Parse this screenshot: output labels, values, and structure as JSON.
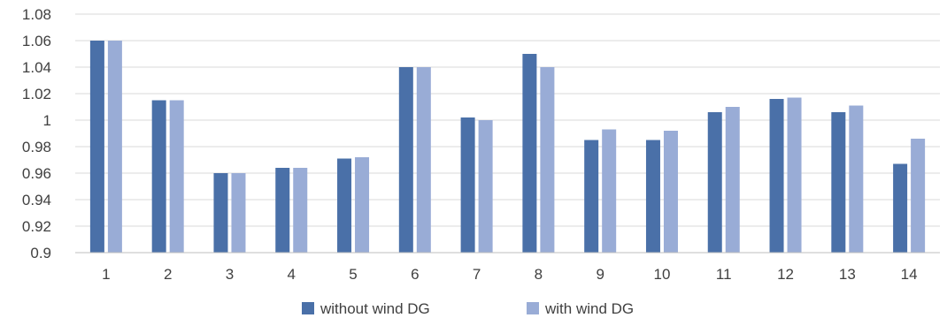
{
  "chart_data": {
    "type": "bar",
    "title": "",
    "xlabel": "",
    "ylabel": "",
    "ylim": [
      0.9,
      1.08
    ],
    "yticks": [
      0.9,
      0.92,
      0.94,
      0.96,
      0.98,
      1,
      1.02,
      1.04,
      1.06,
      1.08
    ],
    "ytick_labels": [
      "0.9",
      "0.92",
      "0.94",
      "0.96",
      "0.98",
      "1",
      "1.02",
      "1.04",
      "1.06",
      "1.08"
    ],
    "grid": "horizontal",
    "legend_position": "bottom-center",
    "categories": [
      "1",
      "2",
      "3",
      "4",
      "5",
      "6",
      "7",
      "8",
      "9",
      "10",
      "11",
      "12",
      "13",
      "14"
    ],
    "series": [
      {
        "name": "without wind DG",
        "color": "#4a70a8",
        "values": [
          1.06,
          1.015,
          0.96,
          0.964,
          0.971,
          1.04,
          1.002,
          1.05,
          0.985,
          0.985,
          1.006,
          1.016,
          1.006,
          0.967
        ]
      },
      {
        "name": "with wind DG",
        "color": "#99acd6",
        "values": [
          1.06,
          1.015,
          0.96,
          0.964,
          0.972,
          1.04,
          1.0,
          1.04,
          0.993,
          0.992,
          1.01,
          1.017,
          1.011,
          0.986
        ]
      }
    ]
  }
}
